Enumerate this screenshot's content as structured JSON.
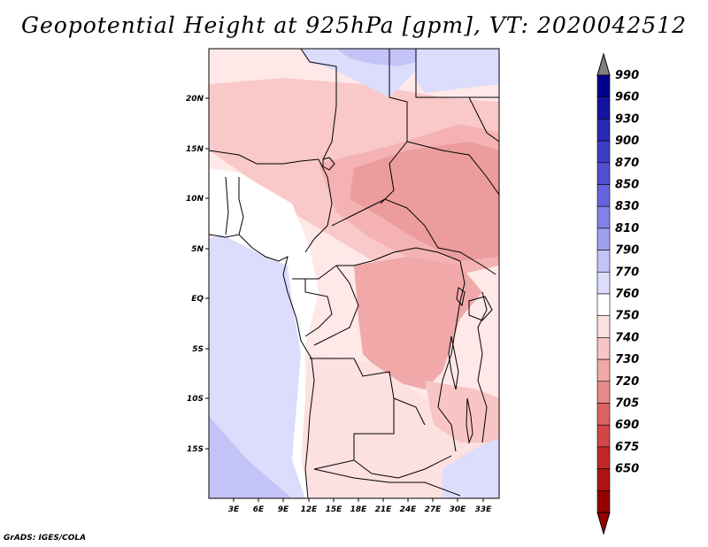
{
  "title": "Geopotential Height at 925hPa [gpm], VT: 2020042512",
  "credit": "GrADS: IGES/COLA",
  "map": {
    "lon_range": [
      0,
      35
    ],
    "lat_range": [
      -20,
      25
    ],
    "lon_ticks": [
      "3E",
      "6E",
      "9E",
      "12E",
      "15E",
      "18E",
      "21E",
      "24E",
      "27E",
      "30E",
      "33E"
    ],
    "lat_ticks": [
      "20N",
      "15N",
      "10N",
      "5N",
      "EQ",
      "5S",
      "10S",
      "15S"
    ]
  },
  "colorbar": {
    "levels": [
      "990",
      "960",
      "930",
      "900",
      "870",
      "850",
      "830",
      "810",
      "790",
      "770",
      "760",
      "750",
      "740",
      "730",
      "720",
      "705",
      "690",
      "675",
      "650"
    ],
    "colors": [
      "#00008c",
      "#1414a0",
      "#2828b4",
      "#3c3cc4",
      "#5050d0",
      "#6464dc",
      "#8282e6",
      "#a0a0f0",
      "#c3c3f8",
      "#dcdcfc",
      "#ffffff",
      "#fde0e0",
      "#f8c4c4",
      "#f0a8a8",
      "#e68c8c",
      "#dc6464",
      "#d24646",
      "#c22828",
      "#ae1414",
      "#960000"
    ]
  }
}
